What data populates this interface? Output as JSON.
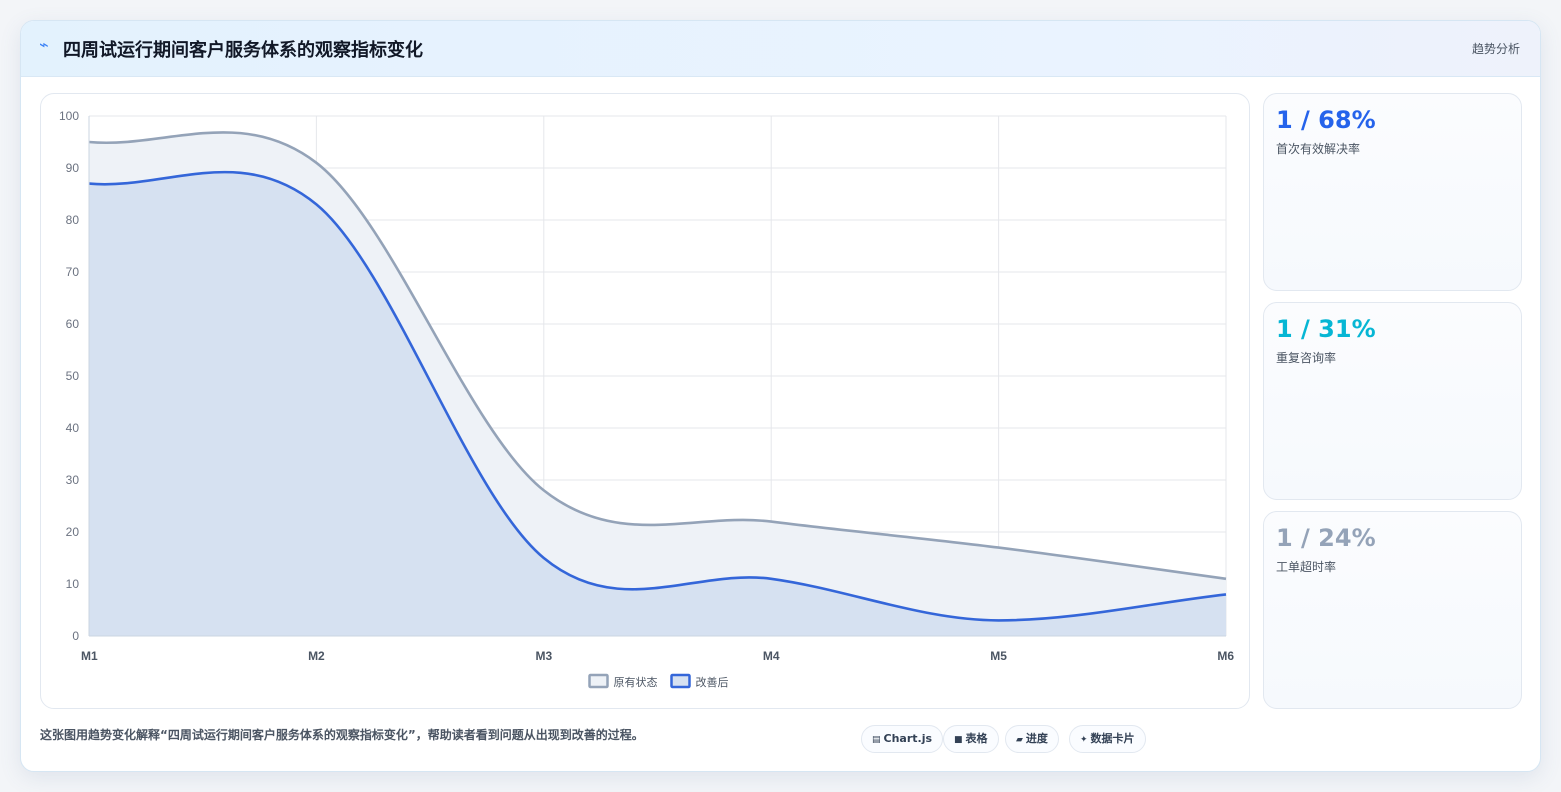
{
  "header": {
    "title": "四周试运行期间客户服务体系的观察指标变化",
    "tag": "趋势分析",
    "logo_icon": "lightning-icon"
  },
  "stats": [
    {
      "value": "1 / 68%",
      "label": "首次有效解决率",
      "color": "#2563eb"
    },
    {
      "value": "1 / 31%",
      "label": "重复咨询率",
      "color": "#06b6d4"
    },
    {
      "value": "1 / 24%",
      "label": "工单超时率",
      "color": "#94a3b8"
    }
  ],
  "caption": "这张图用趋势变化解释“四周试运行期间客户服务体系的观察指标变化”，帮助读者看到问题从出现到改善的过程。",
  "chips": [
    {
      "icon": "chart-icon",
      "glyph": "▤",
      "label": "Chart.js"
    },
    {
      "icon": "table-icon",
      "glyph": "■",
      "label": "表格"
    },
    {
      "icon": "progress-icon",
      "glyph": "▰",
      "label": "进度"
    },
    {
      "icon": "sparkle-icon",
      "glyph": "✦",
      "label": "数据卡片"
    }
  ],
  "chart_data": {
    "type": "area",
    "categories": [
      "M1",
      "M2",
      "M3",
      "M4",
      "M5",
      "M6"
    ],
    "series": [
      {
        "name": "原有状态",
        "values": [
          95,
          91,
          28,
          22,
          17,
          11
        ],
        "color": "#94a3b8",
        "fill": "#eef2f7"
      },
      {
        "name": "改善后",
        "values": [
          87,
          83,
          15,
          11,
          3,
          8
        ],
        "color": "#3466d9",
        "fill": "#d6e1f1"
      }
    ],
    "ylim": [
      0,
      100
    ],
    "yticks": [
      0,
      10,
      20,
      30,
      40,
      50,
      60,
      70,
      80,
      90,
      100
    ],
    "grid": true,
    "legend": "bottom"
  }
}
